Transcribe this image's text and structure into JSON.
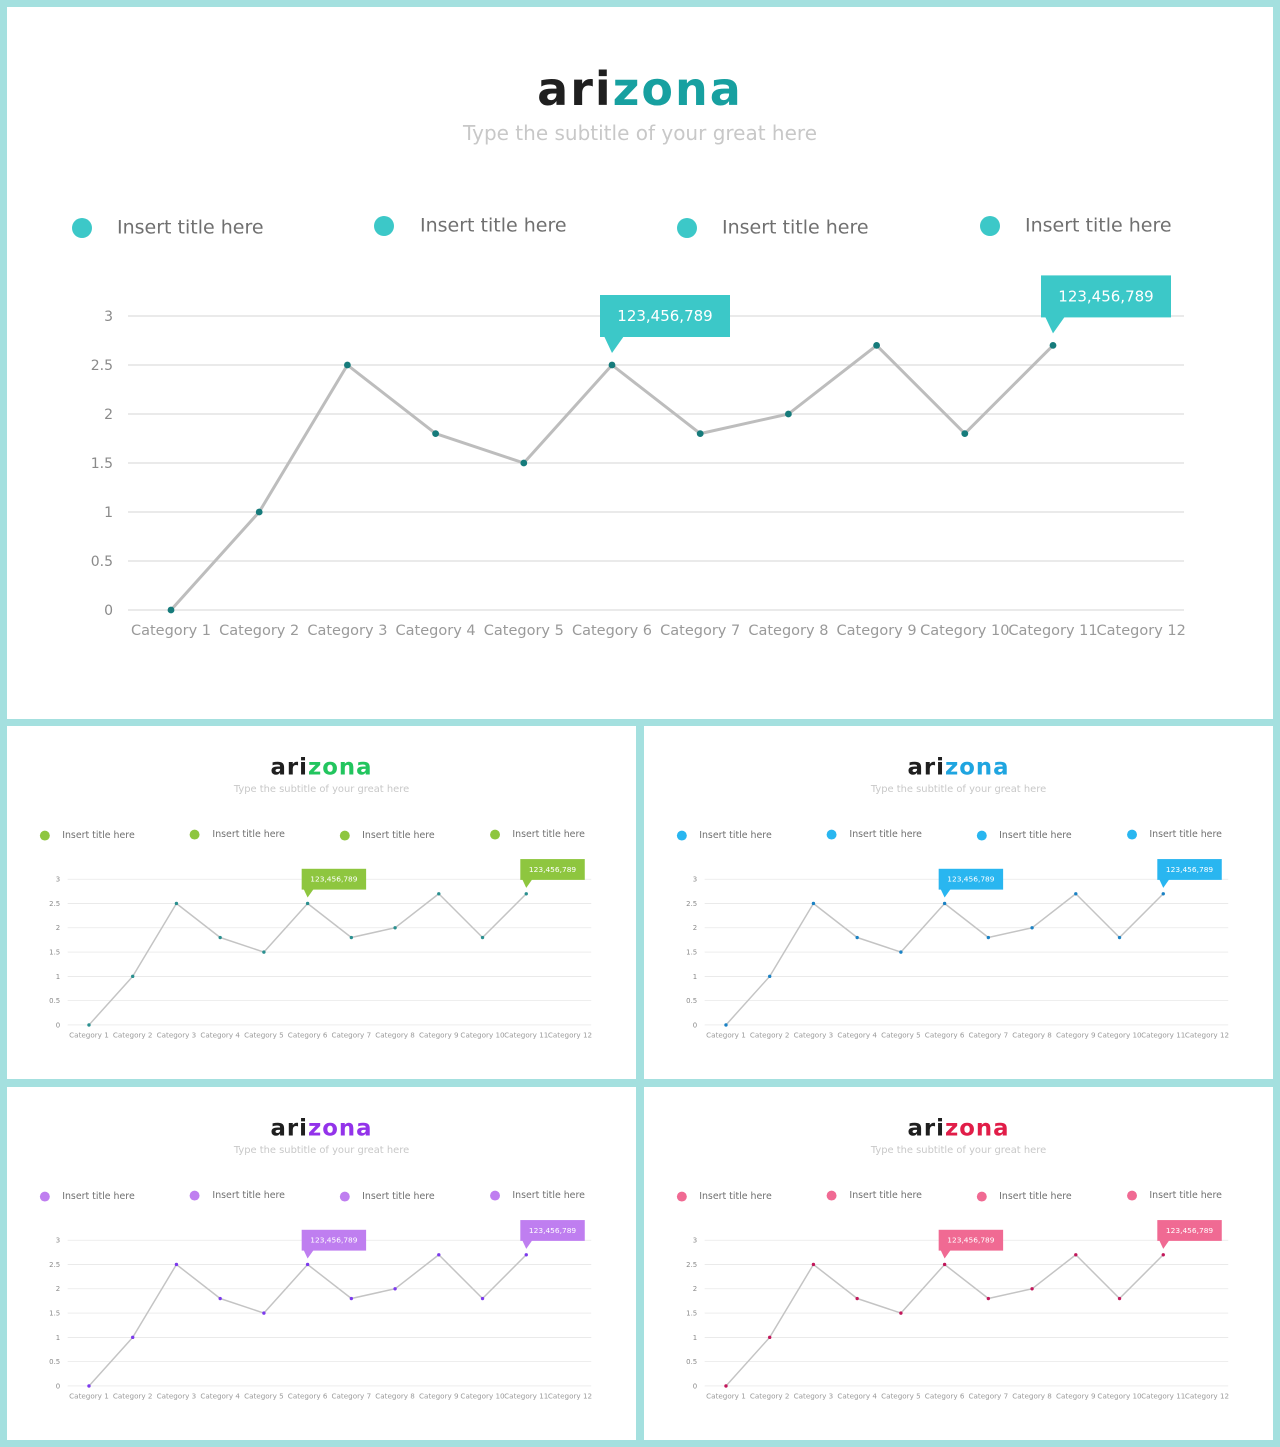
{
  "brand": {
    "part1": "ari",
    "part2": "zona"
  },
  "subtitle": "Type the subtitle of your great here",
  "legend_items": [
    "Insert title here",
    "Insert title here",
    "Insert title here",
    "Insert title here"
  ],
  "callout_text": "123,456,789",
  "chart_data": {
    "type": "line",
    "categories": [
      "Category 1",
      "Category 2",
      "Category 3",
      "Category 4",
      "Category 5",
      "Category 6",
      "Category 7",
      "Category 8",
      "Category 9",
      "Category 10",
      "Category 11",
      "Category 12"
    ],
    "values": [
      0,
      1,
      2.5,
      1.8,
      1.5,
      2.5,
      1.8,
      2,
      2.7,
      1.8,
      2.7,
      null
    ],
    "yticks": [
      0,
      0.5,
      1,
      1.5,
      2,
      2.5,
      3
    ],
    "ylim": [
      0,
      3
    ],
    "grid": true,
    "callouts": [
      {
        "category": "Category 6",
        "text": "123,456,789"
      },
      {
        "category": "Category 11",
        "text": "123,456,789"
      }
    ]
  },
  "slides": [
    {
      "id": "main",
      "accent": "#3cc8c8",
      "brand_color": "#17a0a0",
      "dot_color": "#167b7b",
      "line_color": "#bdbdbd"
    },
    {
      "id": "green",
      "accent": "#8ec63f",
      "brand_color": "#22c55e",
      "dot_color": "#2a9090",
      "line_color": "#c4c4c4"
    },
    {
      "id": "blue",
      "accent": "#29b6f0",
      "brand_color": "#1fa5e0",
      "dot_color": "#1b82c4",
      "line_color": "#c4c4c4"
    },
    {
      "id": "purple",
      "accent": "#bf7ef0",
      "brand_color": "#9333ea",
      "dot_color": "#7c3aed",
      "line_color": "#c4c4c4"
    },
    {
      "id": "pink",
      "accent": "#f06a93",
      "brand_color": "#e11d48",
      "dot_color": "#c2185b",
      "line_color": "#c4c4c4"
    }
  ]
}
